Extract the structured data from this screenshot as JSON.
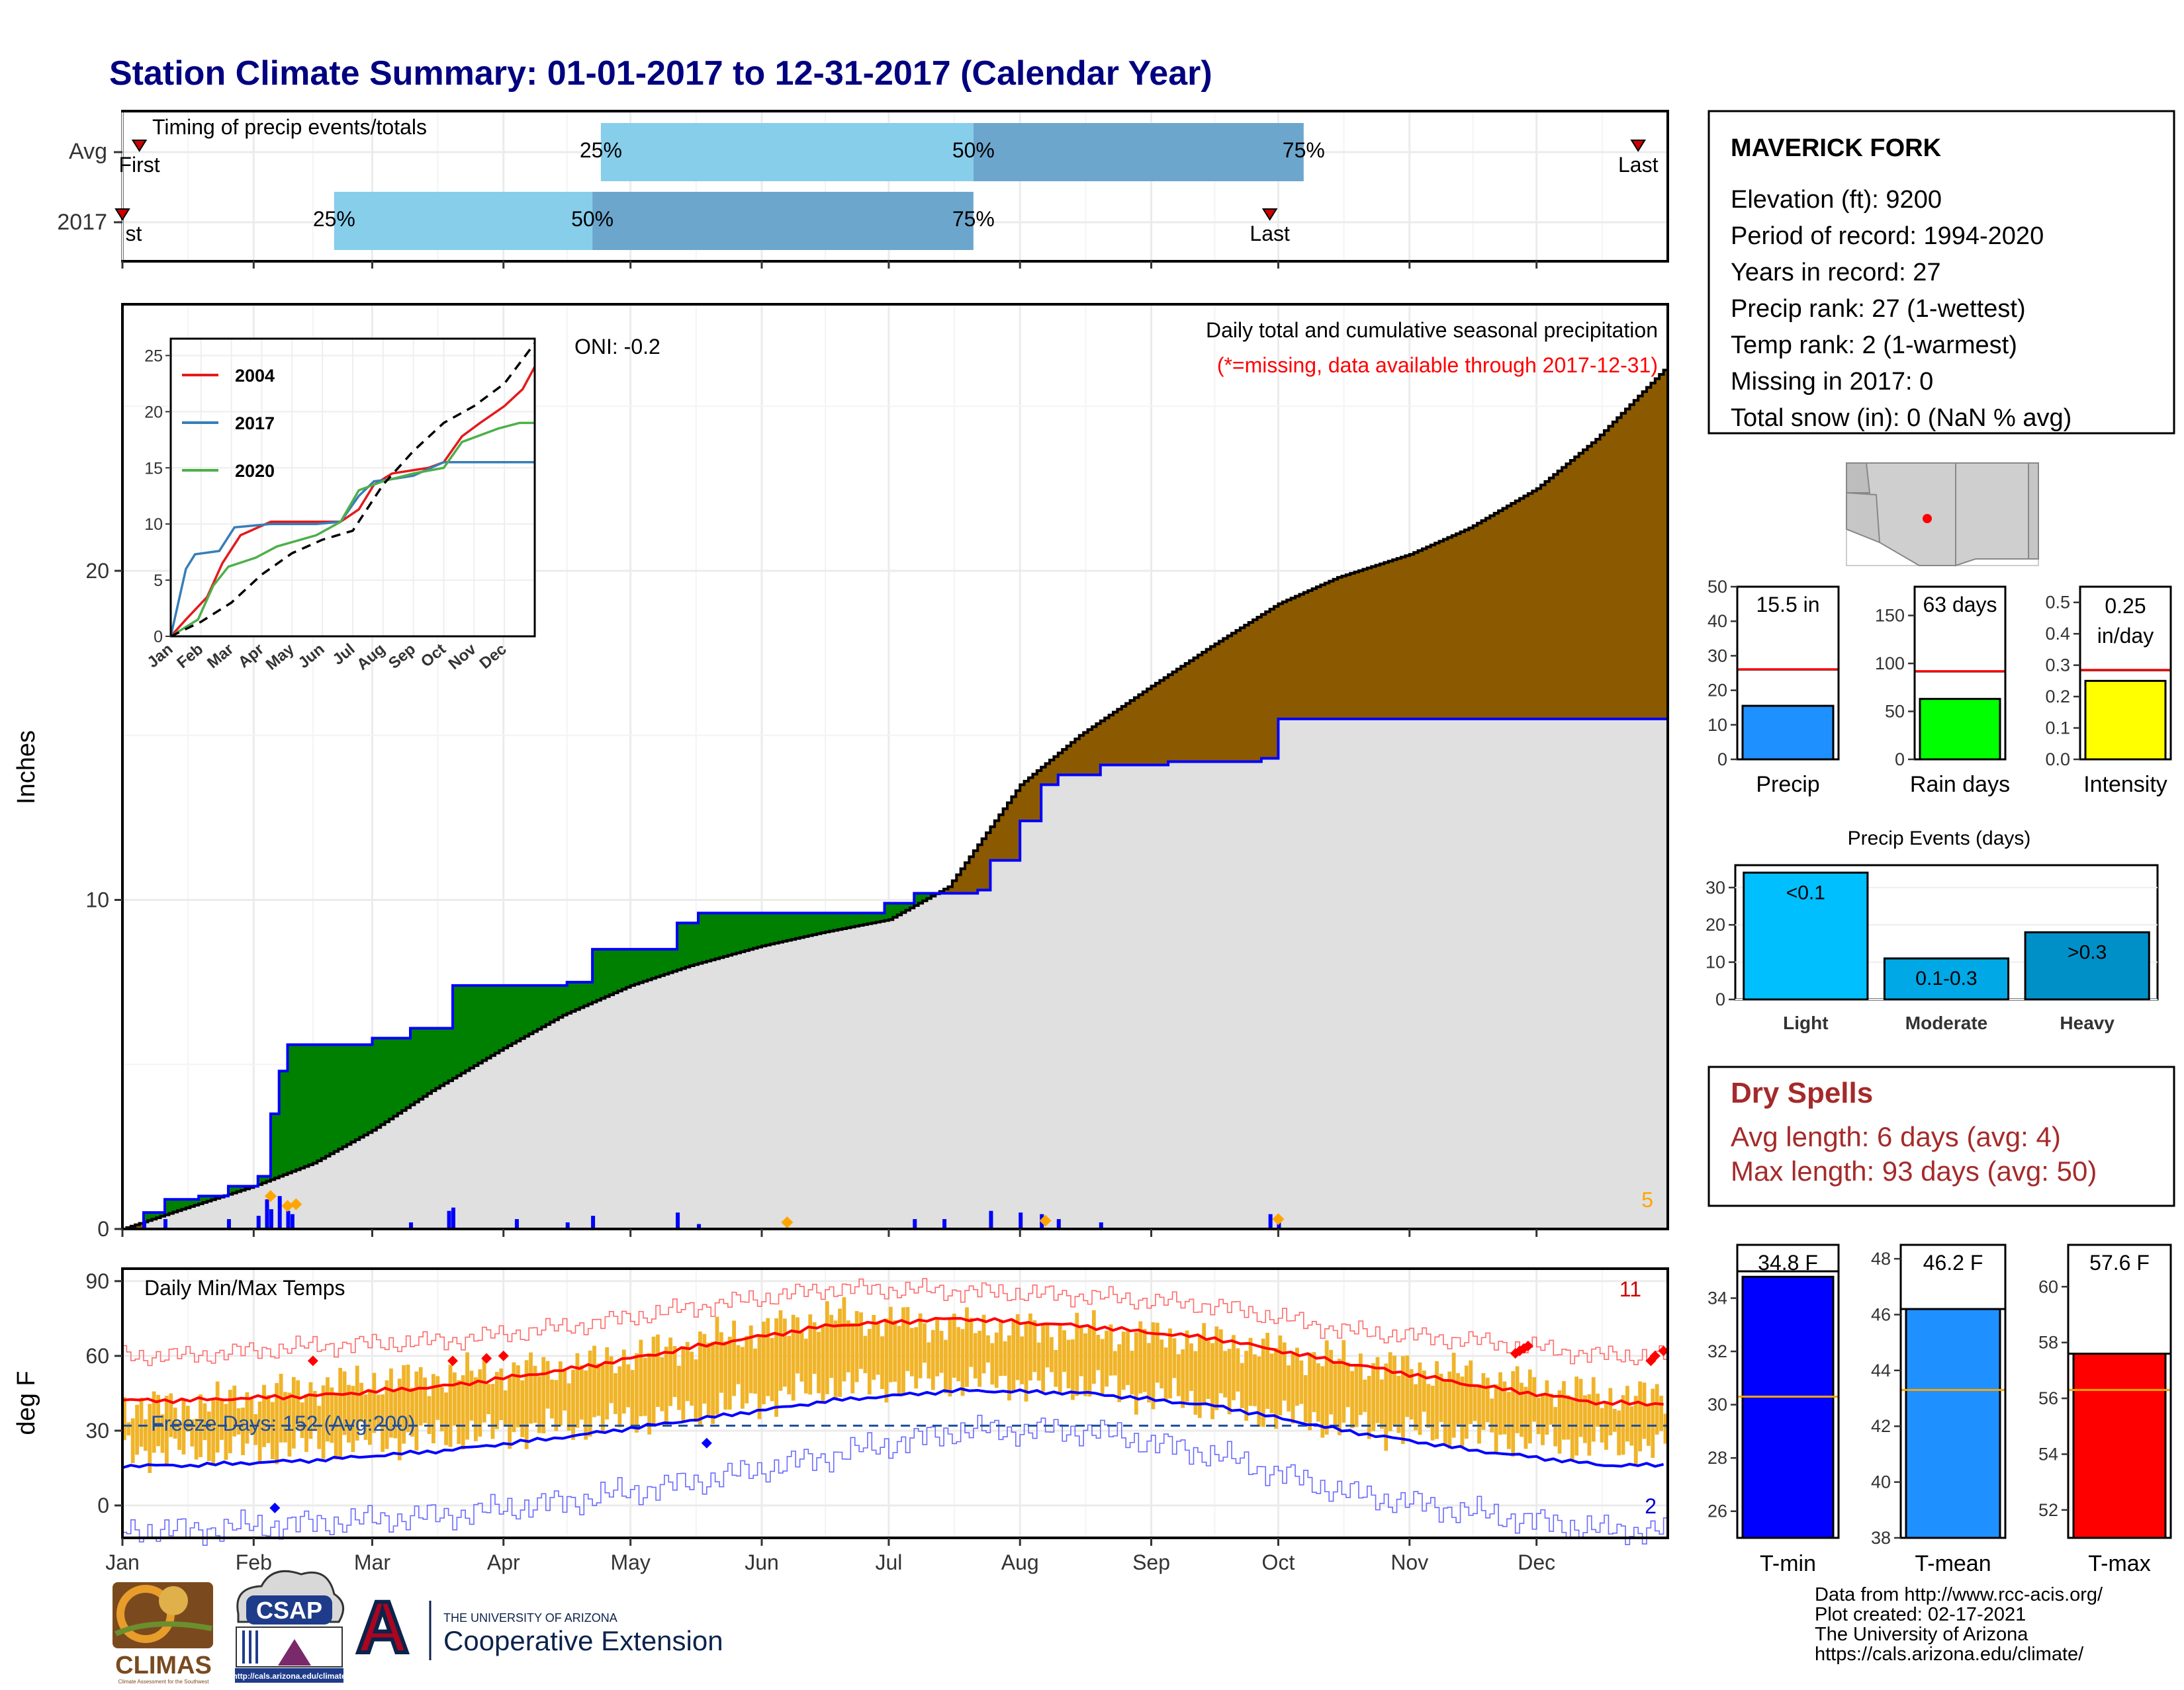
{
  "title": "Station Climate Summary: 01-01-2017 to 12-31-2017 (Calendar Year)",
  "timing": {
    "title": "Timing of precip events/totals",
    "rows": [
      "Avg",
      "2017"
    ],
    "pct_labels": [
      "25%",
      "50%",
      "75%"
    ],
    "first_label": "First",
    "first_label_clipped": "st",
    "last_label": "Last",
    "avg": {
      "first": "2017-01-05",
      "p25": "2017-04-24",
      "p50": "2017-07-21",
      "p75": "2017-10-07",
      "last": "2017-12-25"
    },
    "y2017": {
      "first": "2017-01-01",
      "p25": "2017-02-20",
      "p50": "2017-04-22",
      "p75": "2017-07-21",
      "last": "2017-09-29"
    }
  },
  "chart_data": [
    {
      "type": "area",
      "name": "cumulative-precip",
      "ylabel": "Inches",
      "yticks": [
        0,
        10,
        20
      ],
      "ylim": [
        0,
        28
      ],
      "xlim": [
        "2017-01-01",
        "2017-12-31"
      ],
      "month_labels": [
        "Jan",
        "Feb",
        "Mar",
        "Apr",
        "May",
        "Jun",
        "Jul",
        "Aug",
        "Sep",
        "Oct",
        "Nov",
        "Dec"
      ],
      "legend_title": "Daily total and cumulative seasonal precipitation",
      "legend_missing": "(*=missing, data available through 2017-12-31)",
      "oni": "ONI: -0.2",
      "corner_count": "5",
      "observed_cumulative": [
        [
          "2017-01-01",
          0
        ],
        [
          "2017-01-06",
          0.5
        ],
        [
          "2017-01-11",
          0.9
        ],
        [
          "2017-01-19",
          1.0
        ],
        [
          "2017-01-26",
          1.3
        ],
        [
          "2017-02-02",
          1.6
        ],
        [
          "2017-02-05",
          3.5
        ],
        [
          "2017-02-07",
          4.8
        ],
        [
          "2017-02-09",
          5.6
        ],
        [
          "2017-03-01",
          5.8
        ],
        [
          "2017-03-10",
          6.1
        ],
        [
          "2017-03-20",
          7.4
        ],
        [
          "2017-04-16",
          7.5
        ],
        [
          "2017-04-22",
          8.5
        ],
        [
          "2017-05-12",
          9.3
        ],
        [
          "2017-05-17",
          9.6
        ],
        [
          "2017-06-30",
          9.9
        ],
        [
          "2017-07-07",
          10.2
        ],
        [
          "2017-07-22",
          10.3
        ],
        [
          "2017-07-25",
          11.2
        ],
        [
          "2017-08-01",
          12.4
        ],
        [
          "2017-08-06",
          13.5
        ],
        [
          "2017-08-10",
          13.8
        ],
        [
          "2017-08-20",
          14.1
        ],
        [
          "2017-09-05",
          14.2
        ],
        [
          "2017-09-27",
          14.3
        ],
        [
          "2017-10-01",
          15.5
        ],
        [
          "2017-12-31",
          15.5
        ]
      ],
      "average_cumulative": [
        [
          "2017-01-01",
          0
        ],
        [
          "2017-01-15",
          0.6
        ],
        [
          "2017-02-01",
          1.3
        ],
        [
          "2017-02-15",
          2.0
        ],
        [
          "2017-03-01",
          3.0
        ],
        [
          "2017-03-15",
          4.2
        ],
        [
          "2017-04-01",
          5.5
        ],
        [
          "2017-04-15",
          6.5
        ],
        [
          "2017-05-01",
          7.4
        ],
        [
          "2017-05-15",
          8.0
        ],
        [
          "2017-06-01",
          8.6
        ],
        [
          "2017-06-15",
          9.0
        ],
        [
          "2017-07-01",
          9.4
        ],
        [
          "2017-07-15",
          10.4
        ],
        [
          "2017-08-01",
          13.5
        ],
        [
          "2017-08-15",
          15.0
        ],
        [
          "2017-09-01",
          16.5
        ],
        [
          "2017-09-15",
          17.7
        ],
        [
          "2017-10-01",
          19.0
        ],
        [
          "2017-10-15",
          19.8
        ],
        [
          "2017-11-01",
          20.5
        ],
        [
          "2017-11-15",
          21.3
        ],
        [
          "2017-12-01",
          22.5
        ],
        [
          "2017-12-15",
          24.0
        ],
        [
          "2017-12-31",
          26.1
        ]
      ],
      "daily_bars": [
        [
          "2017-01-06",
          0.25
        ],
        [
          "2017-01-11",
          0.3
        ],
        [
          "2017-01-26",
          0.3
        ],
        [
          "2017-02-02",
          0.4
        ],
        [
          "2017-02-04",
          0.9
        ],
        [
          "2017-02-05",
          0.6
        ],
        [
          "2017-02-07",
          1.0
        ],
        [
          "2017-02-09",
          0.55
        ],
        [
          "2017-02-10",
          0.45
        ],
        [
          "2017-03-10",
          0.2
        ],
        [
          "2017-03-19",
          0.55
        ],
        [
          "2017-03-20",
          0.65
        ],
        [
          "2017-04-04",
          0.3
        ],
        [
          "2017-04-16",
          0.2
        ],
        [
          "2017-04-22",
          0.4
        ],
        [
          "2017-05-12",
          0.5
        ],
        [
          "2017-05-17",
          0.15
        ],
        [
          "2017-07-07",
          0.3
        ],
        [
          "2017-07-14",
          0.3
        ],
        [
          "2017-07-25",
          0.55
        ],
        [
          "2017-08-01",
          0.5
        ],
        [
          "2017-08-06",
          0.45
        ],
        [
          "2017-08-10",
          0.3
        ],
        [
          "2017-08-20",
          0.2
        ],
        [
          "2017-09-29",
          0.45
        ],
        [
          "2017-10-01",
          0.2
        ]
      ],
      "orange_markers": [
        [
          "2017-02-05",
          1.0
        ],
        [
          "2017-02-09",
          0.7
        ],
        [
          "2017-02-11",
          0.75
        ],
        [
          "2017-06-07",
          0.2
        ],
        [
          "2017-08-07",
          0.25
        ],
        [
          "2017-10-01",
          0.3
        ]
      ]
    },
    {
      "type": "line",
      "name": "inset-cumulative-years",
      "yticks": [
        0,
        5,
        10,
        15,
        20,
        25
      ],
      "ylim": [
        0,
        26.5
      ],
      "month_labels": [
        "Jan",
        "Feb",
        "Mar",
        "Apr",
        "May",
        "Jun",
        "Jul",
        "Aug",
        "Sep",
        "Oct",
        "Nov",
        "Dec"
      ],
      "series": [
        {
          "name": "2004",
          "color": "#e41a1c",
          "points": [
            [
              0,
              0
            ],
            [
              0.5,
              1.5
            ],
            [
              1.2,
              3.5
            ],
            [
              1.7,
              6.5
            ],
            [
              2.3,
              9
            ],
            [
              3.3,
              10.2
            ],
            [
              4.5,
              10.2
            ],
            [
              5.6,
              10.2
            ],
            [
              6.2,
              11.3
            ],
            [
              6.7,
              13.5
            ],
            [
              7.3,
              14.5
            ],
            [
              8.5,
              15
            ],
            [
              9.0,
              15.5
            ],
            [
              9.6,
              17.8
            ],
            [
              10.2,
              19
            ],
            [
              11.0,
              20.5
            ],
            [
              11.6,
              22
            ],
            [
              12,
              24
            ]
          ]
        },
        {
          "name": "2017",
          "color": "#377eb8",
          "points": [
            [
              0,
              0
            ],
            [
              0.5,
              6
            ],
            [
              0.8,
              7.3
            ],
            [
              1.6,
              7.6
            ],
            [
              2.1,
              9.7
            ],
            [
              3.3,
              10
            ],
            [
              4.8,
              10
            ],
            [
              5.6,
              10.2
            ],
            [
              6.2,
              12.5
            ],
            [
              6.7,
              13.8
            ],
            [
              7.3,
              14
            ],
            [
              8.0,
              14.3
            ],
            [
              9.0,
              15.5
            ],
            [
              12,
              15.5
            ]
          ]
        },
        {
          "name": "2020",
          "color": "#4daf4a",
          "points": [
            [
              0,
              0
            ],
            [
              0.9,
              1.5
            ],
            [
              1.4,
              4.5
            ],
            [
              1.9,
              6.2
            ],
            [
              2.8,
              7
            ],
            [
              3.5,
              8
            ],
            [
              4.8,
              9
            ],
            [
              5.6,
              10.2
            ],
            [
              6.2,
              13
            ],
            [
              7.0,
              13.8
            ],
            [
              8.0,
              14.5
            ],
            [
              9.0,
              15
            ],
            [
              9.6,
              17.3
            ],
            [
              10.8,
              18.5
            ],
            [
              11.5,
              19
            ],
            [
              12,
              19
            ]
          ]
        },
        {
          "name": "avg",
          "color": "#000000",
          "dashed": true,
          "points": [
            [
              0,
              0
            ],
            [
              1,
              1.3
            ],
            [
              2,
              3
            ],
            [
              3,
              5.5
            ],
            [
              4,
              7.4
            ],
            [
              5,
              8.6
            ],
            [
              6,
              9.4
            ],
            [
              7,
              13.5
            ],
            [
              8,
              16.5
            ],
            [
              9,
              19
            ],
            [
              10,
              20.5
            ],
            [
              11,
              22.5
            ],
            [
              12,
              26.1
            ]
          ]
        }
      ]
    },
    {
      "type": "line",
      "name": "daily-min-max-temps",
      "ylabel": "deg F",
      "yticks": [
        0,
        30,
        60,
        90
      ],
      "ylim": [
        -13,
        95
      ],
      "title": "Daily Min/Max Temps",
      "freeze_label": "Freeze Days: 152 (Avg:200)",
      "freeze_line_value": 32,
      "record_high_count": "11",
      "record_low_count": "2",
      "monthly_avg_max": [
        42,
        44,
        48,
        55,
        64,
        72,
        75,
        72,
        67,
        57,
        48,
        41
      ],
      "monthly_avg_min": [
        16,
        18,
        22,
        28,
        35,
        42,
        46,
        45,
        40,
        30,
        22,
        16
      ],
      "monthly_obs_max": [
        40,
        48,
        52,
        56,
        66,
        76,
        72,
        70,
        66,
        58,
        52,
        44
      ],
      "monthly_obs_min": [
        22,
        24,
        28,
        32,
        38,
        48,
        50,
        48,
        40,
        32,
        28,
        24
      ],
      "monthly_record_high": [
        60,
        64,
        66,
        72,
        80,
        87,
        86,
        84,
        80,
        70,
        66,
        60
      ],
      "monthly_record_low": [
        -10,
        -7,
        -4,
        2,
        10,
        20,
        30,
        30,
        20,
        5,
        -3,
        -10
      ]
    },
    {
      "type": "bar",
      "name": "precip-total",
      "categories": [
        "Precip"
      ],
      "values": [
        15.5
      ],
      "average": 26.1,
      "label": "15.5 in",
      "yticks": [
        0,
        10,
        20,
        30,
        40,
        50
      ],
      "ylim": [
        0,
        50
      ],
      "color": "#1e90ff"
    },
    {
      "type": "bar",
      "name": "rain-days",
      "categories": [
        "Rain days"
      ],
      "values": [
        63
      ],
      "average": 92,
      "label": "63 days",
      "yticks": [
        0,
        50,
        100,
        150
      ],
      "ylim": [
        0,
        180
      ],
      "color": "#00ff00"
    },
    {
      "type": "bar",
      "name": "intensity",
      "categories": [
        "Intensity"
      ],
      "values": [
        0.25
      ],
      "average": 0.285,
      "label_line1": "0.25",
      "label_line2": "in/day",
      "yticks": [
        0.0,
        0.1,
        0.2,
        0.3,
        0.4,
        0.5
      ],
      "ylim": [
        0,
        0.55
      ],
      "color": "#ffff00"
    },
    {
      "type": "bar",
      "name": "precip-events",
      "title": "Precip Events (days)",
      "categories": [
        "Light",
        "Moderate",
        "Heavy"
      ],
      "values": [
        34,
        11,
        18
      ],
      "bar_labels": [
        "<0.1",
        "0.1-0.3",
        ">0.3"
      ],
      "colors": [
        "#00bfff",
        "#00a8e6",
        "#0090c8"
      ],
      "yticks": [
        0,
        10,
        20,
        30
      ],
      "ylim": [
        0,
        36
      ]
    },
    {
      "type": "bar",
      "name": "t-min",
      "categories": [
        "T-min"
      ],
      "values": [
        34.8
      ],
      "average": 30.3,
      "label": "34.8 F",
      "yticks": [
        26,
        28,
        30,
        32,
        34
      ],
      "ylim": [
        25,
        36
      ],
      "color": "#0000ff"
    },
    {
      "type": "bar",
      "name": "t-mean",
      "categories": [
        "T-mean"
      ],
      "values": [
        46.2
      ],
      "average": 43.3,
      "label": "46.2 F",
      "yticks": [
        38,
        40,
        42,
        44,
        46,
        48
      ],
      "ylim": [
        38,
        48.5
      ],
      "color": "#1e90ff"
    },
    {
      "type": "bar",
      "name": "t-max",
      "categories": [
        "T-max"
      ],
      "values": [
        57.6
      ],
      "average": 56.3,
      "label": "57.6 F",
      "yticks": [
        52,
        54,
        56,
        58,
        60
      ],
      "ylim": [
        51,
        61.5
      ],
      "color": "#ff0000"
    }
  ],
  "station": {
    "name": "MAVERICK FORK",
    "lines": [
      "Elevation (ft): 9200",
      "Period of record: 1994-2020",
      "Years in record: 27",
      "Precip rank: 27 (1-wettest)",
      "Temp rank: 2 (1-warmest)",
      "Missing in 2017: 0",
      "Total snow (in): 0 (NaN % avg)"
    ]
  },
  "dry_spells": {
    "title": "Dry Spells",
    "avg_line": "Avg length: 6 days (avg: 4)",
    "max_line": "Max length: 93 days (avg: 50)"
  },
  "footer": {
    "lines": [
      "Data from http://www.rcc-acis.org/",
      "Plot created: 02-17-2021",
      "The University of Arizona",
      "https://cals.arizona.edu/climate/"
    ]
  },
  "logos": {
    "climas": "CLIMAS",
    "climas_sub": "Climate Assessment for the Southwest",
    "csap": "CSAP",
    "csap_url": "http://cals.arizona.edu/climate",
    "ua_letter": "A",
    "ua_line1": "THE UNIVERSITY OF ARIZONA",
    "ua_line2": "Cooperative Extension"
  },
  "colors": {
    "title": "#000080",
    "observed_fill_above": "#008000",
    "observed_fill_below": "#8b5a00",
    "avg_fill": "#e0e0e0",
    "observed_line": "#0000ff",
    "temp_bars": "#f0b429",
    "record_red": "#ff0000",
    "dry_spells": "#a52a2a"
  }
}
